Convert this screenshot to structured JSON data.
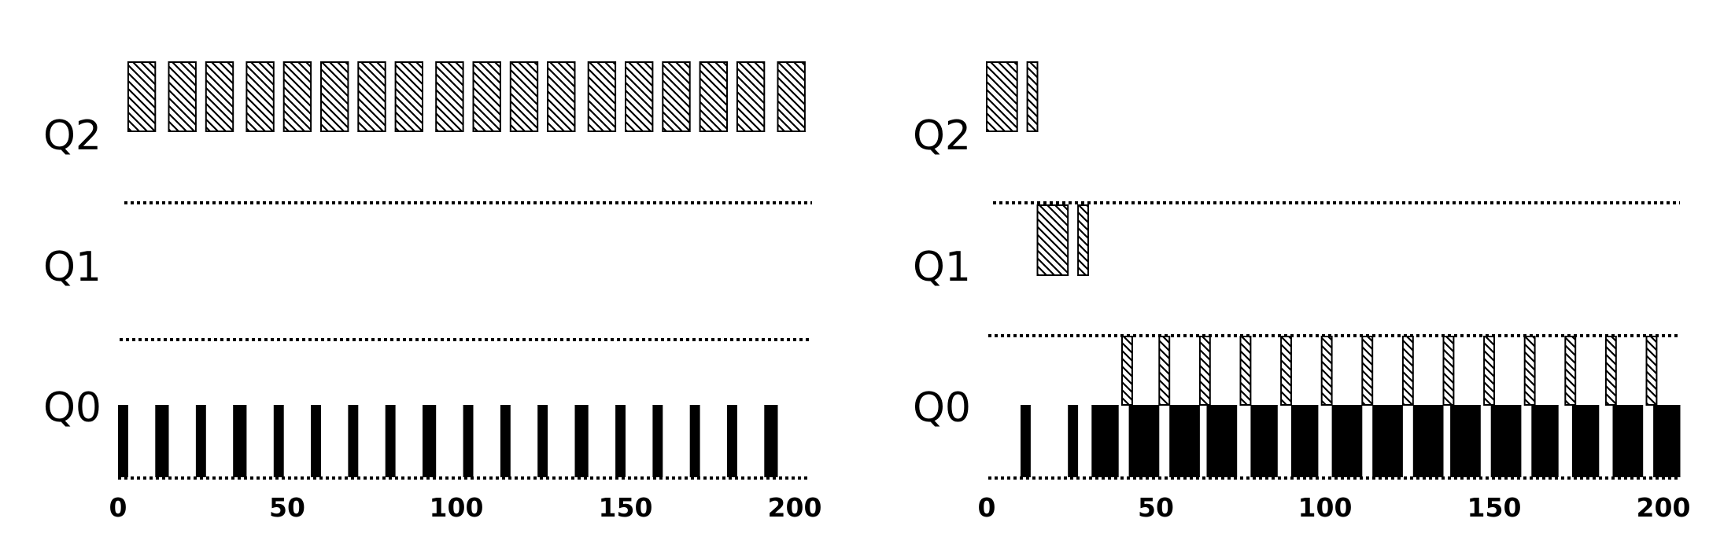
{
  "panels": [
    {
      "queues": [
        "Q2",
        "Q1",
        "Q0"
      ],
      "x_ticks": [
        "0",
        "50",
        "100",
        "150",
        "200"
      ],
      "x_range": [
        0,
        200
      ],
      "q2_bars": [
        [
          3,
          11
        ],
        [
          15,
          23
        ],
        [
          26,
          34
        ],
        [
          38,
          46
        ],
        [
          49,
          57
        ],
        [
          60,
          68
        ],
        [
          71,
          79
        ],
        [
          82,
          90
        ],
        [
          94,
          102
        ],
        [
          105,
          113
        ],
        [
          116,
          124
        ],
        [
          127,
          135
        ],
        [
          139,
          147
        ],
        [
          150,
          158
        ],
        [
          161,
          169
        ],
        [
          172,
          180
        ],
        [
          183,
          191
        ],
        [
          195,
          203
        ]
      ],
      "q1_bars": [],
      "q0_bars": [
        [
          0,
          3
        ],
        [
          11,
          15
        ],
        [
          23,
          26
        ],
        [
          34,
          38
        ],
        [
          46,
          49
        ],
        [
          57,
          60
        ],
        [
          68,
          71
        ],
        [
          79,
          82
        ],
        [
          90,
          94
        ],
        [
          102,
          105
        ],
        [
          113,
          116
        ],
        [
          124,
          127
        ],
        [
          135,
          139
        ],
        [
          147,
          150
        ],
        [
          158,
          161
        ],
        [
          169,
          172
        ],
        [
          180,
          183
        ],
        [
          191,
          195
        ]
      ],
      "q0_top_bars": []
    },
    {
      "queues": [
        "Q2",
        "Q1",
        "Q0"
      ],
      "x_ticks": [
        "0",
        "50",
        "100",
        "150",
        "200"
      ],
      "x_range": [
        0,
        200
      ],
      "q2_bars": [
        [
          0,
          9
        ],
        [
          12,
          15
        ]
      ],
      "q1_bars": [
        [
          15,
          24
        ],
        [
          27,
          30
        ]
      ],
      "q0_bars": [
        [
          10,
          13
        ],
        [
          24,
          27
        ],
        [
          31,
          39
        ],
        [
          42,
          51
        ],
        [
          54,
          63
        ],
        [
          65,
          74
        ],
        [
          78,
          86
        ],
        [
          90,
          98
        ],
        [
          102,
          111
        ],
        [
          114,
          123
        ],
        [
          126,
          135
        ],
        [
          137,
          146
        ],
        [
          149,
          158
        ],
        [
          161,
          169
        ],
        [
          173,
          181
        ],
        [
          185,
          194
        ],
        [
          197,
          205
        ]
      ],
      "q0_top_bars": [
        [
          40,
          43
        ],
        [
          51,
          54
        ],
        [
          63,
          66
        ],
        [
          75,
          78
        ],
        [
          87,
          90
        ],
        [
          99,
          102
        ],
        [
          111,
          114
        ],
        [
          123,
          126
        ],
        [
          135,
          138
        ],
        [
          147,
          150
        ],
        [
          159,
          162
        ],
        [
          171,
          174
        ],
        [
          183,
          186
        ],
        [
          195,
          198
        ]
      ]
    }
  ]
}
